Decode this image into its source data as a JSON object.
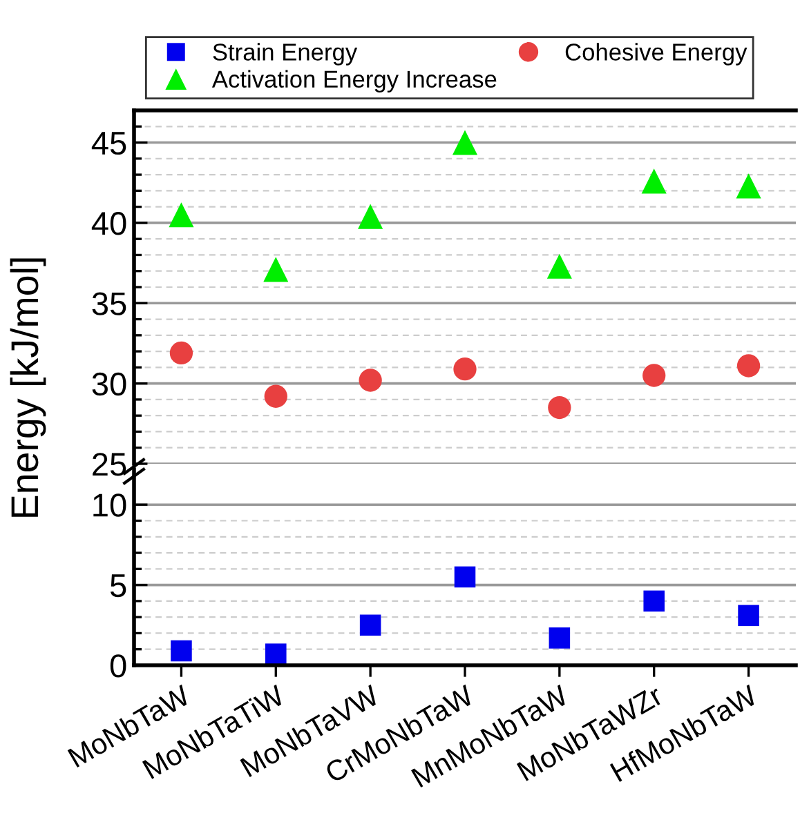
{
  "chart_data": [
    {
      "type": "scatter",
      "ylabel": "Energy [kJ/mol]",
      "legend": "top",
      "tick_labels": "y",
      "grid": "y",
      "ylim": [
        25,
        47
      ],
      "yticks": [
        25,
        {
          "value": 26,
          "label": null
        },
        {
          "value": 27,
          "label": null
        },
        {
          "value": 28,
          "label": null
        },
        {
          "value": 29,
          "label": null
        },
        30,
        {
          "value": 31,
          "label": null
        },
        {
          "value": 32,
          "label": null
        },
        {
          "value": 33,
          "label": null
        },
        {
          "value": 34,
          "label": null
        },
        35,
        {
          "value": 36,
          "label": null
        },
        {
          "value": 37,
          "label": null
        },
        {
          "value": 38,
          "label": null
        },
        {
          "value": 39,
          "label": null
        },
        40,
        {
          "value": 41,
          "label": null
        },
        {
          "value": 42,
          "label": null
        },
        {
          "value": 43,
          "label": null
        },
        {
          "value": 44,
          "label": null
        },
        45,
        {
          "value": 46,
          "label": null
        }
      ],
      "series": [
        {
          "name": "Cohesive Energy",
          "color": "#e84040",
          "marker": "circle",
          "values": [
            31.9,
            29.2,
            30.2,
            30.9,
            28.5,
            30.5,
            31.1
          ]
        },
        {
          "name": "Activation Energy Increase",
          "color": "#00ee00",
          "marker": "triangle",
          "values": [
            40.5,
            37.1,
            40.4,
            45.0,
            37.3,
            42.6,
            42.3
          ]
        }
      ]
    },
    {
      "type": "scatter",
      "grid": "y",
      "categories": [
        "MoNbTaW",
        "MoNbTaTiW",
        "MoNbTaVW",
        "CrMoNbTaW",
        "MnMoNbTaW",
        "MoNbTaWZr",
        "HfMoNbTaW"
      ],
      "ylim": [
        0,
        12.2
      ],
      "yticks": [
        0,
        {
          "value": 1,
          "label": null
        },
        {
          "value": 2,
          "label": null
        },
        {
          "value": 3,
          "label": null
        },
        {
          "value": 4,
          "label": null
        },
        5,
        {
          "value": 6,
          "label": null
        },
        {
          "value": 7,
          "label": null
        },
        {
          "value": 8,
          "label": null
        },
        {
          "value": 9,
          "label": null
        },
        10
      ],
      "series": [
        {
          "name": "Strain Energy",
          "color": "#0000ee",
          "marker": "square",
          "values": [
            0.9,
            0.7,
            2.5,
            5.5,
            1.7,
            4.0,
            3.1
          ]
        }
      ]
    }
  ]
}
